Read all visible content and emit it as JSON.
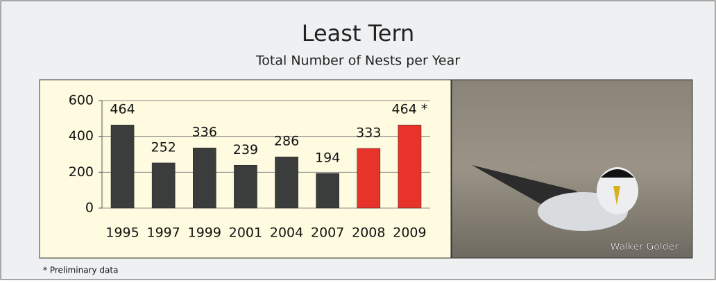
{
  "chart_data": {
    "type": "bar",
    "title": "Least Tern",
    "subtitle": "Total Number of Nests per Year",
    "categories": [
      "1995",
      "1997",
      "1999",
      "2001",
      "2004",
      "2007",
      "2008",
      "2009"
    ],
    "values": [
      464,
      252,
      336,
      239,
      286,
      194,
      333,
      464
    ],
    "value_labels": [
      "464",
      "252",
      "336",
      "239",
      "286",
      "194",
      "333",
      "464 *"
    ],
    "colors": [
      "#3a3d3c",
      "#3a3d3c",
      "#3a3d3c",
      "#3a3d3c",
      "#3a3d3c",
      "#3a3d3c",
      "#e8332a",
      "#e8332a"
    ],
    "ylim": [
      0,
      600
    ],
    "yticks": [
      0,
      200,
      400,
      600
    ],
    "grid": true,
    "footnote": "* Preliminary data",
    "photo_credit": "Walker Golder"
  }
}
